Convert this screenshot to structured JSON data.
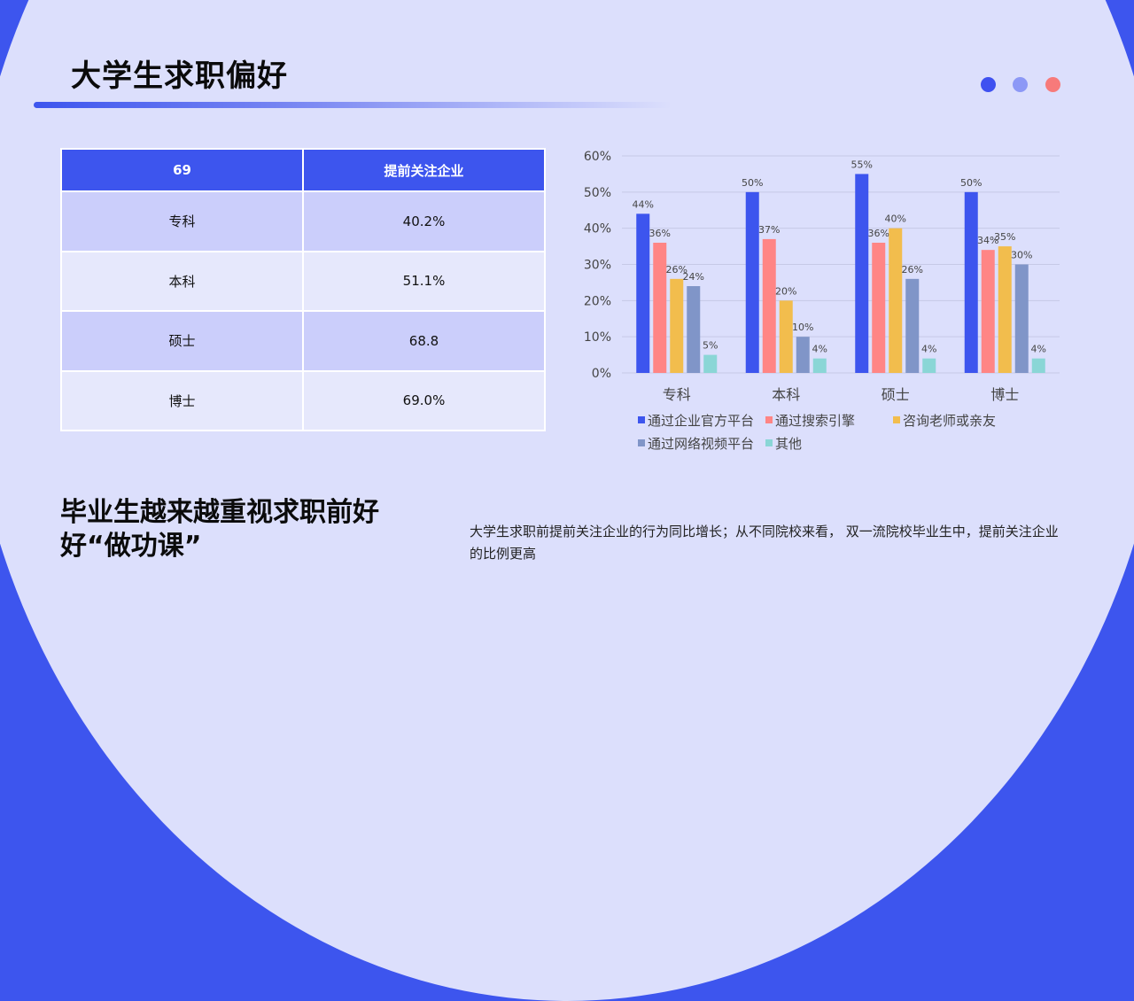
{
  "title": "大学生求职偏好",
  "colors": {
    "accent": "#3d55ee",
    "panel": "#dcdffc",
    "dots": [
      "#3f51f0",
      "#8c98f6",
      "#f77a7a"
    ]
  },
  "table": {
    "headers": [
      "69",
      "提前关注企业"
    ],
    "rows": [
      [
        "专科",
        "40.2%"
      ],
      [
        "本科",
        "51.1%"
      ],
      [
        "硕士",
        "68.8"
      ],
      [
        "博士",
        "69.0%"
      ]
    ]
  },
  "chart_data": {
    "type": "bar",
    "categories": [
      "专科",
      "本科",
      "硕士",
      "博士"
    ],
    "series": [
      {
        "name": "通过企业官方平台",
        "values": [
          44,
          50,
          55,
          50
        ],
        "color": "#3d55ee"
      },
      {
        "name": "通过搜索引擎",
        "values": [
          36,
          37,
          36,
          34
        ],
        "color": "#ff8585"
      },
      {
        "name": "咨询老师或亲友",
        "values": [
          26,
          20,
          40,
          35
        ],
        "color": "#f2bd4d"
      },
      {
        "name": "通过网络视频平台",
        "values": [
          24,
          10,
          26,
          30
        ],
        "color": "#8095c8"
      },
      {
        "name": "其他",
        "values": [
          5,
          4,
          4,
          4
        ],
        "color": "#8ad6d6"
      }
    ],
    "ylim": [
      0,
      60
    ],
    "yticks": [
      "0%",
      "10%",
      "20%",
      "30%",
      "40%",
      "50%",
      "60%"
    ],
    "grid": true,
    "legend": "bottom",
    "value_suffix": "%"
  },
  "heading": "毕业生越来越重视求职前好好“做功课”",
  "description": "大学生求职前提前关注企业的行为同比增长；从不同院校来看， 双一流院校毕业生中，提前关注企业的比例更高"
}
